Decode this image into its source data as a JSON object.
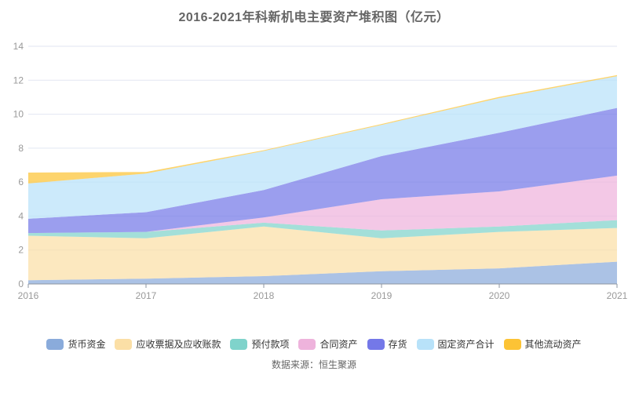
{
  "title": "2016-2021年科新机电主要资产堆积图（亿元）",
  "source": "数据来源：恒生聚源",
  "colors": {
    "grid": "#e2e6f2",
    "axis": "#8e94a0",
    "area_opacity": 0.72
  },
  "chart_data": {
    "type": "area",
    "stacked": true,
    "title": "2016-2021年科新机电主要资产堆积图（亿元）",
    "x": [
      2016,
      2017,
      2018,
      2019,
      2020,
      2021
    ],
    "xticks": [
      "2016",
      "2017",
      "2018",
      "2019",
      "2020",
      "2021"
    ],
    "yticks": [
      "0",
      "2",
      "4",
      "6",
      "8",
      "10",
      "12",
      "14"
    ],
    "ylim": [
      0,
      14
    ],
    "ytick_step": 2,
    "grid": true,
    "legend_position": "bottom",
    "series": [
      {
        "name": "货币资金",
        "color": "#8aabdb",
        "values": [
          0.22,
          0.31,
          0.46,
          0.75,
          0.92,
          1.31
        ]
      },
      {
        "name": "应收票据及应收账款",
        "color": "#fbdfa6",
        "values": [
          2.62,
          2.38,
          2.92,
          1.94,
          2.15,
          1.99
        ]
      },
      {
        "name": "预付款项",
        "color": "#7fd3cb",
        "values": [
          0.16,
          0.38,
          0.23,
          0.46,
          0.31,
          0.46
        ]
      },
      {
        "name": "合同资产",
        "color": "#eeb3dc",
        "values": [
          0.0,
          0.0,
          0.31,
          1.84,
          2.07,
          2.62
        ]
      },
      {
        "name": "存货",
        "color": "#7478e8",
        "values": [
          0.84,
          1.16,
          1.61,
          2.54,
          3.46,
          3.99
        ]
      },
      {
        "name": "固定资产合计",
        "color": "#b8e2f9",
        "values": [
          2.08,
          2.27,
          2.3,
          1.84,
          2.04,
          1.87
        ]
      },
      {
        "name": "其他流动资产",
        "color": "#fcc335",
        "values": [
          0.64,
          0.1,
          0.05,
          0.05,
          0.07,
          0.06
        ]
      }
    ]
  }
}
